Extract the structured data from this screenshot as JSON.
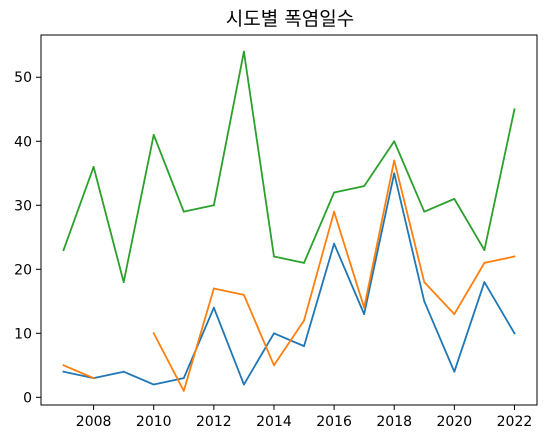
{
  "chart_data": {
    "type": "line",
    "title": "시도별 폭염일수",
    "xlabel": "",
    "ylabel": "",
    "x": [
      2007,
      2008,
      2009,
      2010,
      2011,
      2012,
      2013,
      2014,
      2015,
      2016,
      2017,
      2018,
      2019,
      2020,
      2021,
      2022
    ],
    "xlim": [
      2006.25,
      2022.75
    ],
    "ylim": [
      -1.2,
      56.6
    ],
    "xticks": [
      2008,
      2010,
      2012,
      2014,
      2016,
      2018,
      2020,
      2022
    ],
    "yticks": [
      0,
      10,
      20,
      30,
      40,
      50
    ],
    "grid": false,
    "legend": "none",
    "series": [
      {
        "color": "#1f77b4",
        "values": [
          4,
          3,
          4,
          2,
          3,
          14,
          2,
          10,
          8,
          24,
          13,
          35,
          15,
          4,
          18,
          10
        ]
      },
      {
        "color": "#ff7f0e",
        "values": [
          5,
          3,
          null,
          10,
          1,
          17,
          16,
          5,
          12,
          29,
          14,
          37,
          18,
          13,
          21,
          22
        ]
      },
      {
        "color": "#2ca02c",
        "values": [
          23,
          36,
          18,
          41,
          29,
          30,
          54,
          22,
          21,
          32,
          33,
          40,
          29,
          31,
          23,
          45
        ]
      }
    ]
  }
}
